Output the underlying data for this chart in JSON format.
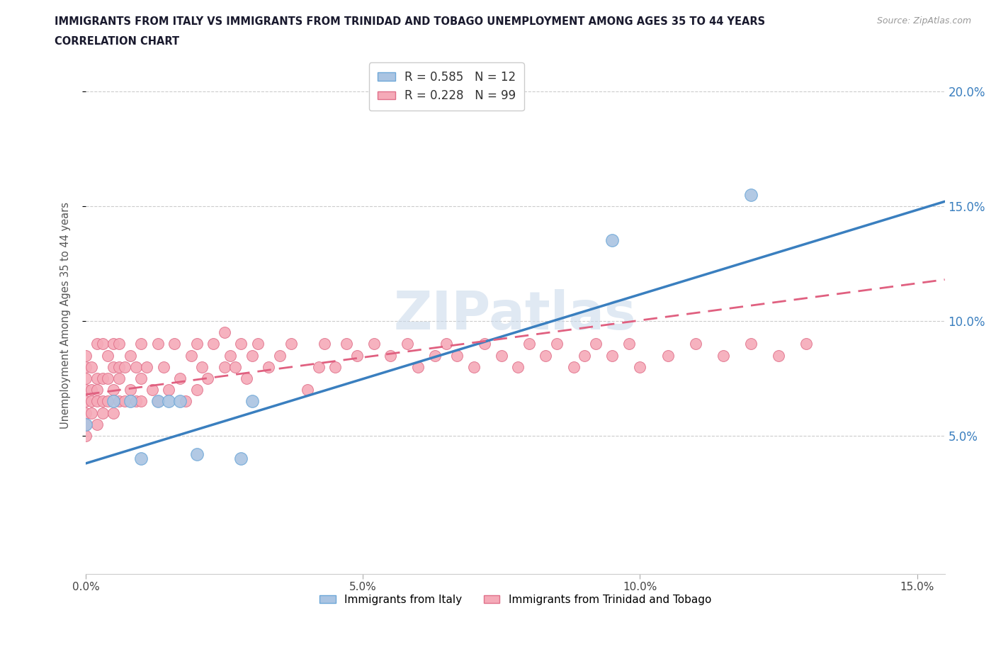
{
  "title_line1": "IMMIGRANTS FROM ITALY VS IMMIGRANTS FROM TRINIDAD AND TOBAGO UNEMPLOYMENT AMONG AGES 35 TO 44 YEARS",
  "title_line2": "CORRELATION CHART",
  "source": "Source: ZipAtlas.com",
  "ylabel": "Unemployment Among Ages 35 to 44 years",
  "xlim": [
    0.0,
    0.155
  ],
  "ylim": [
    -0.01,
    0.215
  ],
  "yticks": [
    0.05,
    0.1,
    0.15,
    0.2
  ],
  "ytick_labels": [
    "5.0%",
    "10.0%",
    "15.0%",
    "20.0%"
  ],
  "xticks": [
    0.0,
    0.05,
    0.1,
    0.15
  ],
  "xtick_labels": [
    "0.0%",
    "5.0%",
    "10.0%",
    "15.0%"
  ],
  "italy_color": "#aac4e2",
  "italy_edge": "#6ea8d8",
  "italy_line_color": "#3a7fbf",
  "tt_color": "#f5aab8",
  "tt_edge": "#e0708a",
  "tt_line_color": "#e06080",
  "R_italy": 0.585,
  "N_italy": 12,
  "R_tt": 0.228,
  "N_tt": 99,
  "legend_label_italy": "Immigrants from Italy",
  "legend_label_tt": "Immigrants from Trinidad and Tobago",
  "watermark": "ZIPatlas",
  "italy_line_x0": 0.0,
  "italy_line_y0": 0.038,
  "italy_line_x1": 0.15,
  "italy_line_y1": 0.152,
  "tt_line_x0": 0.0,
  "tt_line_y0": 0.068,
  "tt_line_x1": 0.15,
  "tt_line_y1": 0.118,
  "italy_x": [
    0.0,
    0.005,
    0.008,
    0.01,
    0.013,
    0.015,
    0.017,
    0.02,
    0.028,
    0.03,
    0.095,
    0.12
  ],
  "italy_y": [
    0.055,
    0.065,
    0.065,
    0.04,
    0.065,
    0.065,
    0.065,
    0.042,
    0.04,
    0.065,
    0.135,
    0.155
  ],
  "tt_x": [
    0.0,
    0.0,
    0.0,
    0.0,
    0.0,
    0.0,
    0.0,
    0.0,
    0.001,
    0.001,
    0.001,
    0.001,
    0.002,
    0.002,
    0.002,
    0.002,
    0.002,
    0.003,
    0.003,
    0.003,
    0.003,
    0.004,
    0.004,
    0.004,
    0.005,
    0.005,
    0.005,
    0.005,
    0.006,
    0.006,
    0.006,
    0.006,
    0.007,
    0.007,
    0.008,
    0.008,
    0.009,
    0.009,
    0.01,
    0.01,
    0.01,
    0.011,
    0.012,
    0.013,
    0.013,
    0.014,
    0.015,
    0.016,
    0.017,
    0.018,
    0.019,
    0.02,
    0.02,
    0.021,
    0.022,
    0.023,
    0.025,
    0.025,
    0.026,
    0.027,
    0.028,
    0.029,
    0.03,
    0.031,
    0.033,
    0.035,
    0.037,
    0.04,
    0.042,
    0.043,
    0.045,
    0.047,
    0.049,
    0.052,
    0.055,
    0.058,
    0.06,
    0.063,
    0.065,
    0.067,
    0.07,
    0.072,
    0.075,
    0.078,
    0.08,
    0.083,
    0.085,
    0.088,
    0.09,
    0.092,
    0.095,
    0.098,
    0.1,
    0.105,
    0.11,
    0.115,
    0.12,
    0.125,
    0.13
  ],
  "tt_y": [
    0.055,
    0.06,
    0.065,
    0.07,
    0.075,
    0.08,
    0.085,
    0.05,
    0.06,
    0.065,
    0.07,
    0.08,
    0.055,
    0.065,
    0.07,
    0.075,
    0.09,
    0.06,
    0.065,
    0.075,
    0.09,
    0.065,
    0.075,
    0.085,
    0.06,
    0.07,
    0.08,
    0.09,
    0.065,
    0.075,
    0.08,
    0.09,
    0.065,
    0.08,
    0.07,
    0.085,
    0.065,
    0.08,
    0.065,
    0.075,
    0.09,
    0.08,
    0.07,
    0.065,
    0.09,
    0.08,
    0.07,
    0.09,
    0.075,
    0.065,
    0.085,
    0.07,
    0.09,
    0.08,
    0.075,
    0.09,
    0.08,
    0.095,
    0.085,
    0.08,
    0.09,
    0.075,
    0.085,
    0.09,
    0.08,
    0.085,
    0.09,
    0.07,
    0.08,
    0.09,
    0.08,
    0.09,
    0.085,
    0.09,
    0.085,
    0.09,
    0.08,
    0.085,
    0.09,
    0.085,
    0.08,
    0.09,
    0.085,
    0.08,
    0.09,
    0.085,
    0.09,
    0.08,
    0.085,
    0.09,
    0.085,
    0.09,
    0.08,
    0.085,
    0.09,
    0.085,
    0.09,
    0.085,
    0.09
  ]
}
